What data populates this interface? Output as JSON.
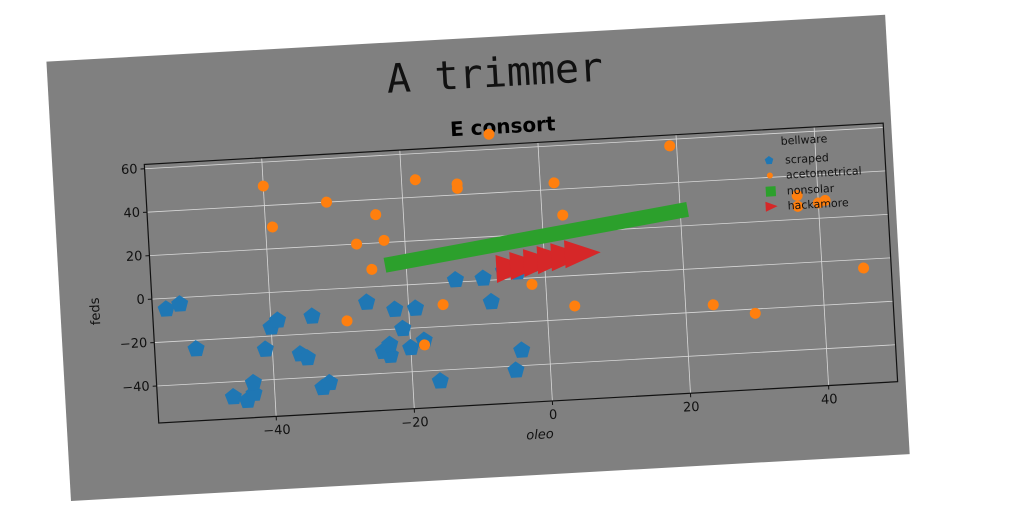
{
  "figure": {
    "title": "A trimmer",
    "background": "#808080",
    "page_background": "#ffffff"
  },
  "chart_data": {
    "type": "scatter",
    "title": "E consort",
    "xlabel": "oleo",
    "ylabel": "feds",
    "xlim": [
      -57,
      50
    ],
    "ylim": [
      -57,
      62
    ],
    "xticks": [
      -40,
      -20,
      0,
      20,
      40
    ],
    "yticks": [
      -40,
      -20,
      0,
      20,
      40,
      60
    ],
    "xtick_labels": [
      "−40",
      "−20",
      "0",
      "20",
      "40"
    ],
    "ytick_labels": [
      "−40",
      "−20",
      "0",
      "20",
      "40",
      "60"
    ],
    "grid": true,
    "legend": {
      "title": "bellware",
      "position": "top-right"
    },
    "series": [
      {
        "name": "scraped",
        "marker": "pentagon",
        "color": "#1f77b4",
        "points": [
          [
            -55,
            -5
          ],
          [
            -53,
            -3
          ],
          [
            -51,
            -24
          ],
          [
            -46,
            -47
          ],
          [
            -44,
            -49
          ],
          [
            -43,
            -46
          ],
          [
            -43,
            -41
          ],
          [
            -41,
            -26
          ],
          [
            -40,
            -16
          ],
          [
            -39,
            -13
          ],
          [
            -36,
            -29
          ],
          [
            -35,
            -31
          ],
          [
            -34,
            -12
          ],
          [
            -33,
            -45
          ],
          [
            -32,
            -43
          ],
          [
            -26,
            -7
          ],
          [
            -24,
            -30
          ],
          [
            -23,
            -32
          ],
          [
            -23,
            -27
          ],
          [
            -22,
            -11
          ],
          [
            -21,
            -20
          ],
          [
            -20,
            -29
          ],
          [
            -19,
            -11
          ],
          [
            -18,
            -26
          ],
          [
            -16,
            -45
          ],
          [
            -13,
            1
          ],
          [
            -9,
            1
          ],
          [
            -8,
            -10
          ],
          [
            -6,
            4
          ],
          [
            -5,
            -42
          ],
          [
            -4,
            -33
          ],
          [
            -4,
            3
          ],
          [
            -2,
            6
          ]
        ]
      },
      {
        "name": "acetometrical",
        "marker": "circle",
        "color": "#ff7f0e",
        "points": [
          [
            -40,
            49
          ],
          [
            -39,
            30
          ],
          [
            -31,
            40
          ],
          [
            -29,
            -15
          ],
          [
            -27,
            20
          ],
          [
            -25,
            8
          ],
          [
            -24,
            33
          ],
          [
            -23,
            21
          ],
          [
            -18,
            -28
          ],
          [
            -18,
            48
          ],
          [
            -15,
            -10
          ],
          [
            -12,
            43
          ],
          [
            -12,
            45
          ],
          [
            -7,
            67
          ],
          [
            -2,
            -3
          ],
          [
            2,
            43
          ],
          [
            3,
            28
          ],
          [
            4,
            -14
          ],
          [
            19,
            57
          ],
          [
            24,
            -17
          ],
          [
            30,
            -22
          ],
          [
            37,
            31
          ],
          [
            37,
            26
          ],
          [
            40,
            27
          ],
          [
            41,
            28
          ],
          [
            46,
            -4
          ]
        ]
      },
      {
        "name": "nonsolar",
        "marker": "square",
        "color": "#2ca02c",
        "segment": [
          [
            -22,
            10
          ],
          [
            20,
            27
          ]
        ]
      },
      {
        "name": "hackamore",
        "marker": "triangle-right",
        "color": "#d62728",
        "points": [
          [
            -5,
            5
          ],
          [
            -3,
            6
          ],
          [
            -1,
            7
          ],
          [
            1,
            8
          ],
          [
            3,
            9
          ],
          [
            5,
            10
          ]
        ]
      }
    ]
  }
}
